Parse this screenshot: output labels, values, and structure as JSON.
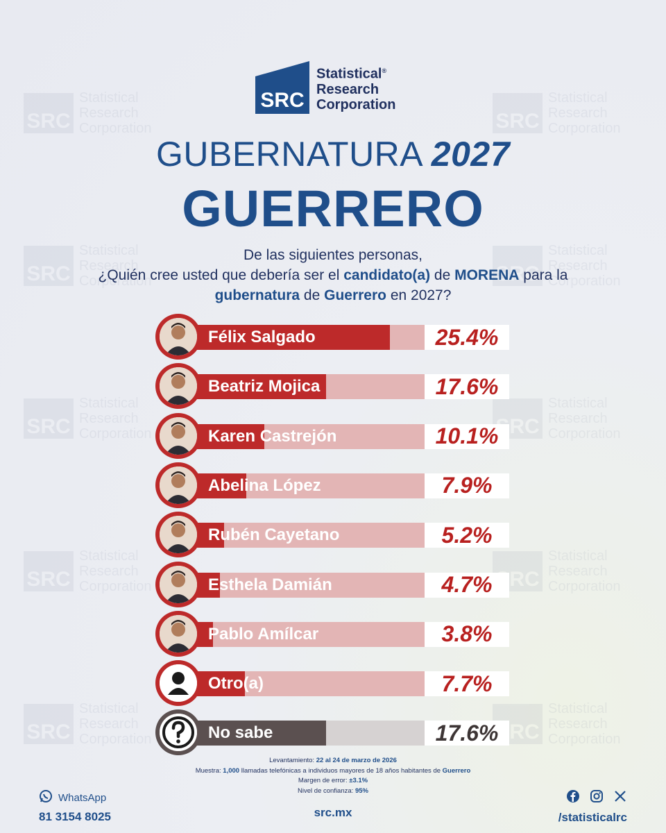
{
  "brand": {
    "logo_letters": "SRC",
    "logo_lines": [
      "Statistical",
      "Research",
      "Corporation"
    ],
    "registered_mark": "®",
    "primary_color": "#1f4e8a",
    "accent_color": "#bd2a2a"
  },
  "header": {
    "title_light": "GUBERNATURA",
    "title_year": "2027",
    "state": "GUERRERO"
  },
  "question": {
    "line1": "De las siguientes personas,",
    "line2_a": "¿Quién cree usted que debería ser el ",
    "line2_b": "candidato(a)",
    "line2_c": " de ",
    "line2_d": "MORENA",
    "line2_e": " para la",
    "line3_a": "gubernatura",
    "line3_b": " de ",
    "line3_c": "Guerrero",
    "line3_d": " en 2027?"
  },
  "chart_data": {
    "type": "bar",
    "orientation": "horizontal",
    "title": "GUBERNATURA 2027 GUERRERO",
    "categories": [
      "Félix Salgado",
      "Beatriz Mojica",
      "Karen Castrejón",
      "Abelina López",
      "Rubén Cayetano",
      "Esthela Damián",
      "Pablo Amílcar",
      "Otro(a)",
      "No sabe"
    ],
    "values": [
      25.4,
      17.6,
      10.1,
      7.9,
      5.2,
      4.7,
      3.8,
      7.7,
      17.6
    ],
    "labels": [
      "25.4%",
      "17.6%",
      "10.1%",
      "7.9%",
      "5.2%",
      "4.7%",
      "3.8%",
      "7.7%",
      "17.6%"
    ],
    "xlim": [
      0,
      40
    ],
    "unit": "%"
  },
  "rows_meta": [
    {
      "icon": "person-photo-icon"
    },
    {
      "icon": "person-photo-icon"
    },
    {
      "icon": "person-photo-icon"
    },
    {
      "icon": "person-photo-icon"
    },
    {
      "icon": "person-photo-icon"
    },
    {
      "icon": "person-photo-icon"
    },
    {
      "icon": "person-photo-icon"
    },
    {
      "icon": "user-silhouette-icon"
    },
    {
      "icon": "question-mark-icon"
    }
  ],
  "notes": {
    "survey_label": "Levantamiento: ",
    "survey_value": "22 al 24 de marzo de 2026",
    "sample_label": "Muestra: ",
    "sample_value": "1,000",
    "sample_text": " llamadas telefónicas a individuos mayores de 18 años habitantes de ",
    "sample_place": "Guerrero",
    "margin_label": "Margen de error: ",
    "margin_value": "±3.1%",
    "confidence_label": "Nivel de confianza: ",
    "confidence_value": "95%"
  },
  "footer": {
    "whatsapp_label": "WhatsApp",
    "phone": "81 3154 8025",
    "site": "src.mx",
    "handle": "/statisticalrc"
  }
}
